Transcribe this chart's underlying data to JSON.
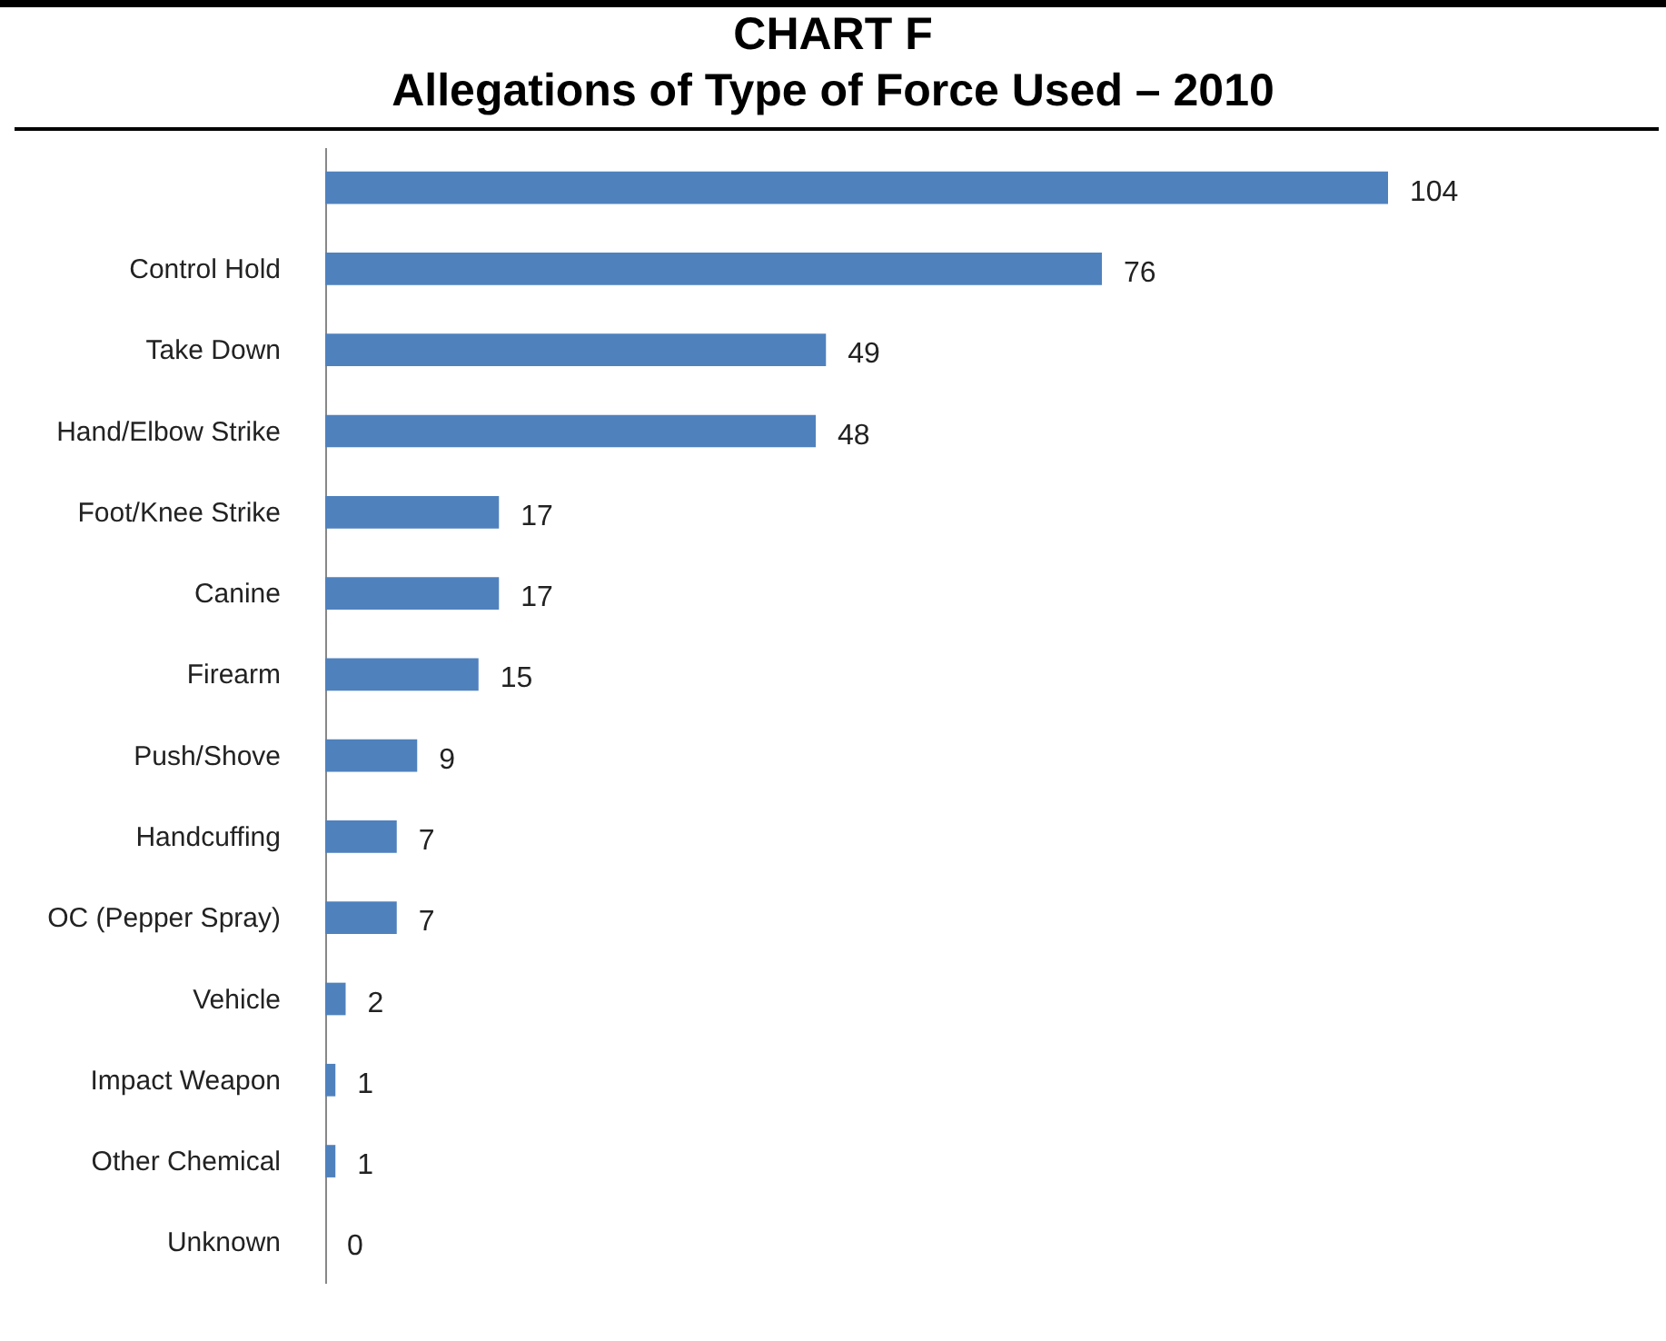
{
  "chart_data": {
    "type": "bar",
    "orientation": "horizontal",
    "title": "CHART F",
    "subtitle": "Allegations of Type of Force Used – 2010",
    "categories": [
      null,
      "Control Hold",
      "Take Down",
      "Hand/Elbow Strike",
      "Foot/Knee Strike",
      "Canine",
      "Firearm",
      "Push/Shove",
      "Handcuffing",
      "OC (Pepper Spray)",
      "Vehicle",
      "Impact Weapon",
      "Other Chemical",
      "Unknown"
    ],
    "values": [
      104,
      76,
      49,
      48,
      17,
      17,
      15,
      9,
      7,
      7,
      2,
      1,
      1,
      0
    ],
    "color": "#4f81bd",
    "data_labels": true
  }
}
